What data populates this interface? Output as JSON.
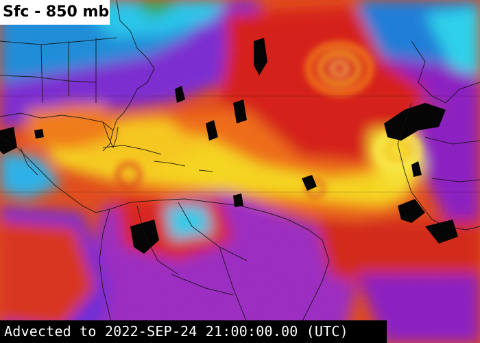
{
  "map": {
    "title": "Sfc - 850 mb",
    "timestamp": "Advected to 2022-SEP-24 21:00:00.00 (UTC)",
    "palette": {
      "dry_purple": "#8a1fc0",
      "cyan": "#23c6e8",
      "blue": "#1a6fd8",
      "green": "#2fa85a",
      "red": "#d8241a",
      "orange": "#ee6a14",
      "yellow": "#f5d81e",
      "black": "#000000",
      "coastline": "#111111"
    }
  }
}
